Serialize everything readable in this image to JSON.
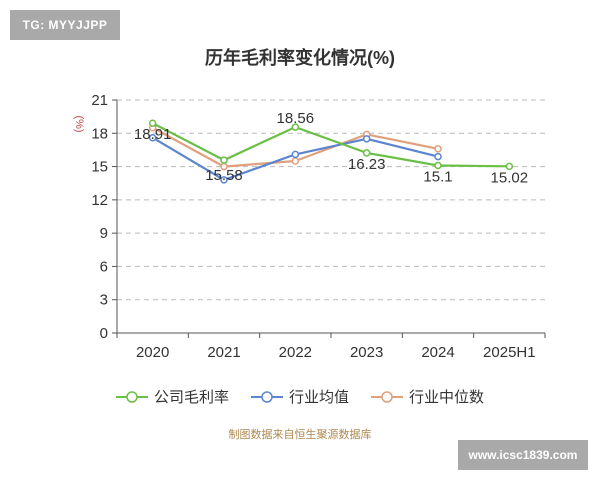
{
  "watermark_top": "TG: MYYJJPP",
  "watermark_bottom": "www.icsc1839.com",
  "source_note": "制图数据来自恒生聚源数据库",
  "colors": {
    "series_1": "#6abf45",
    "series_2": "#5b85cf",
    "series_3": "#e0a07c",
    "grid": "#bbbbbb",
    "axis": "#555555",
    "unit": "#c0504d"
  },
  "chart_data": {
    "type": "line",
    "title": "历年毛利率变化情况(%)",
    "ylabel": "(%)",
    "xlabel": "",
    "categories": [
      "2020",
      "2021",
      "2022",
      "2023",
      "2024",
      "2025H1"
    ],
    "ylim": [
      0,
      21
    ],
    "yticks": [
      0,
      3,
      6,
      9,
      12,
      15,
      18,
      21
    ],
    "grid": true,
    "legend_position": "bottom",
    "series": [
      {
        "name": "公司毛利率",
        "values": [
          18.91,
          15.58,
          18.56,
          16.23,
          15.1,
          15.02
        ],
        "labels": [
          "18.91",
          "15.58",
          "18.56",
          "16.23",
          "15.1",
          "15.02"
        ]
      },
      {
        "name": "行业均值",
        "values": [
          17.6,
          13.8,
          16.1,
          17.5,
          15.9,
          null
        ]
      },
      {
        "name": "行业中位数",
        "values": [
          18.5,
          15.0,
          15.5,
          17.9,
          16.6,
          null
        ]
      }
    ]
  }
}
